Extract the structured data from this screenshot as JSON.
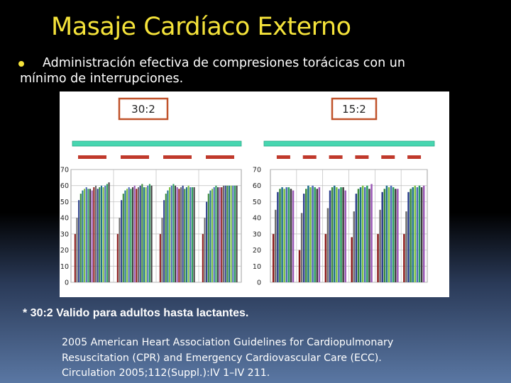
{
  "slide": {
    "title": "Masaje Cardíaco Externo",
    "bullet": "Administración efectiva de compresiones torácicas con un mínimo de interrupciones.",
    "note": "* 30:2 Valido para adultos hasta lactantes.",
    "citation": [
      "2005 American Heart Association Guidelines for Cardiopulmonary",
      "Resuscitation (CPR) and Emergency Cardiovascular Care (ECC).",
      "Circulation 2005;112(Suppl.):IV 1–IV 211."
    ],
    "accent_color": "#f5e33a"
  },
  "chart_data": [
    {
      "type": "bar",
      "label": "30:2",
      "ylim": [
        0,
        70
      ],
      "yticks": [
        "0",
        "10",
        "20",
        "30",
        "40",
        "50",
        "60",
        "70"
      ],
      "grid": true,
      "cycles": 4,
      "values": [
        [
          30,
          40,
          51,
          55,
          57,
          58,
          59,
          58,
          58,
          57,
          59,
          60,
          58,
          59,
          60,
          59,
          60,
          61,
          62
        ],
        [
          30,
          40,
          51,
          55,
          57,
          58,
          59,
          58,
          59,
          60,
          58,
          59,
          60,
          61,
          59,
          59,
          60,
          61,
          60
        ],
        [
          30,
          40,
          51,
          55,
          57,
          59,
          60,
          61,
          60,
          59,
          58,
          59,
          60,
          58,
          59,
          60,
          59,
          59,
          59
        ],
        [
          30,
          40,
          50,
          55,
          57,
          58,
          59,
          60,
          59,
          59,
          59,
          60,
          60,
          60,
          60,
          60,
          60,
          60,
          60
        ]
      ]
    },
    {
      "type": "bar",
      "label": "15:2",
      "ylim": [
        0,
        70
      ],
      "yticks": [
        "0",
        "10",
        "20",
        "30",
        "40",
        "50",
        "60",
        "70"
      ],
      "grid": true,
      "cycles": 6,
      "values": [
        [
          30,
          45,
          56,
          58,
          59,
          58,
          59,
          59,
          58,
          57
        ],
        [
          20,
          43,
          55,
          58,
          60,
          59,
          60,
          59,
          58,
          59
        ],
        [
          30,
          46,
          57,
          59,
          60,
          59,
          58,
          59,
          59,
          57
        ],
        [
          28,
          44,
          55,
          58,
          59,
          60,
          59,
          60,
          58,
          61
        ],
        [
          30,
          45,
          56,
          58,
          60,
          59,
          60,
          59,
          58,
          58
        ],
        [
          30,
          44,
          56,
          58,
          59,
          60,
          59,
          60,
          59,
          60
        ]
      ]
    }
  ],
  "bar_palette": [
    "#8b1a1a",
    "#6e6e6e",
    "#2c3e8c",
    "#3a8a3a",
    "#1f6f8b",
    "#7ac143",
    "#4a6bb5",
    "#2a9d5c",
    "#3d3d3d",
    "#9b59b6"
  ]
}
